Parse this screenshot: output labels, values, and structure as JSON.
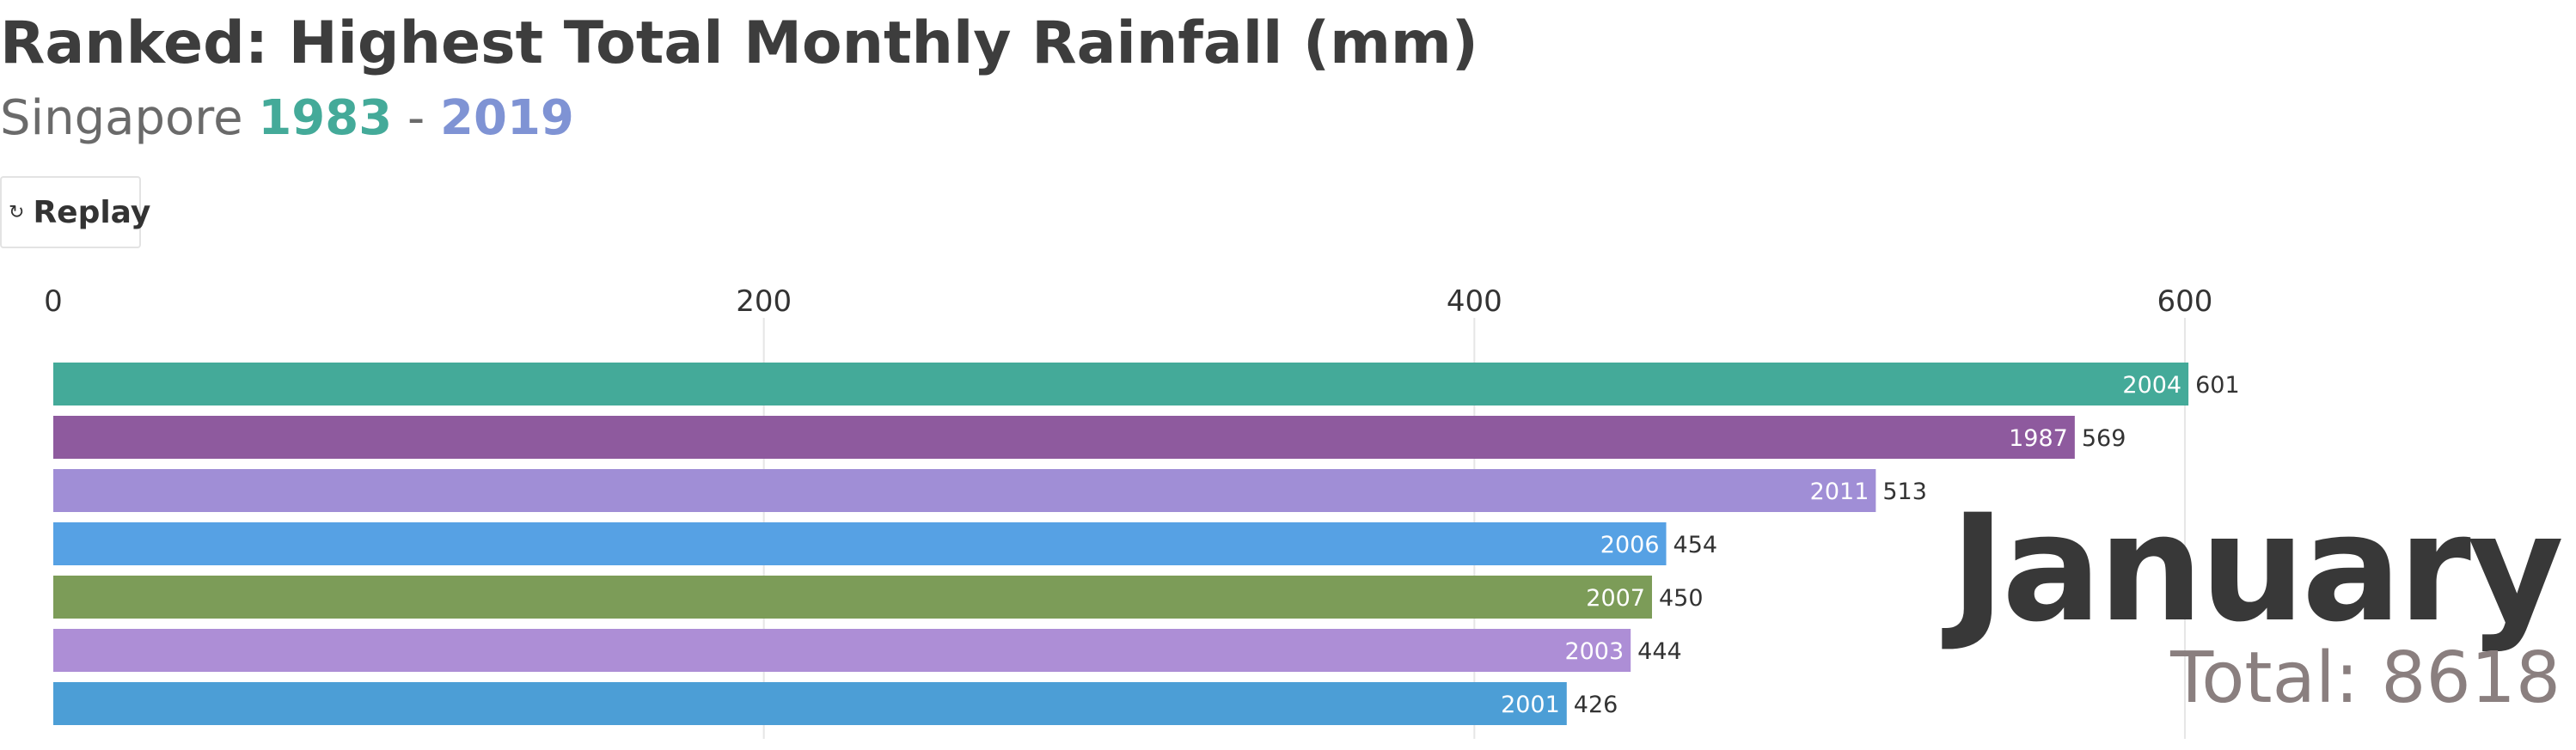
{
  "header": {
    "title": "Ranked: Highest Total Monthly Rainfall (mm)",
    "subtitle_prefix": "Singapore",
    "year_start": "1983",
    "separator": "-",
    "year_end": "2019"
  },
  "replay_button": {
    "label": "Replay",
    "icon": "replay-icon"
  },
  "overlay": {
    "month": "January",
    "total_label": "Total: 8618"
  },
  "chart_data": {
    "type": "bar",
    "orientation": "horizontal",
    "categories": [
      "2004",
      "1987",
      "2011",
      "2006",
      "2007",
      "2003",
      "2001"
    ],
    "values": [
      601,
      569,
      513,
      454,
      450,
      444,
      426
    ],
    "colors": [
      "#44aa99",
      "#8e5a9e",
      "#a08ed6",
      "#56a1e4",
      "#7c9c58",
      "#ad8ed6",
      "#4c9ed6"
    ],
    "title": "Ranked: Highest Total Monthly Rainfall (mm)",
    "xlim": [
      0,
      640
    ],
    "xticks": [
      0,
      200,
      400,
      600
    ],
    "tick_labels": [
      "0",
      "200",
      "400",
      "600"
    ],
    "axis_position": "top",
    "grid": true
  }
}
